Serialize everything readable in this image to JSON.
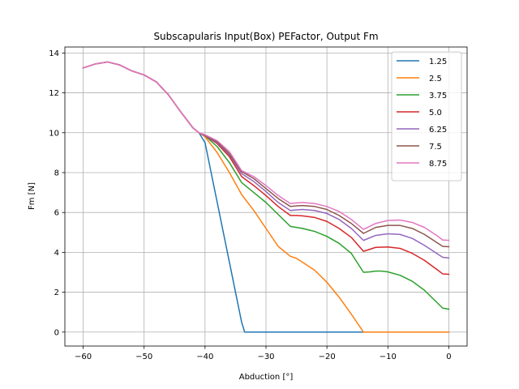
{
  "chart_data": {
    "type": "line",
    "title": "Subscapularis Input(Box) PEFactor, Output Fm",
    "xlabel": "Abduction [°]",
    "ylabel": "Fm [N]",
    "xlim": [
      -63,
      3
    ],
    "ylim": [
      -0.7,
      14.3
    ],
    "xticks": [
      -60,
      -50,
      -40,
      -30,
      -20,
      -10,
      0
    ],
    "xtick_labels": [
      "−60",
      "−50",
      "−40",
      "−30",
      "−20",
      "−10",
      "0"
    ],
    "yticks": [
      0,
      2,
      4,
      6,
      8,
      10,
      12,
      14
    ],
    "ytick_labels": [
      "0",
      "2",
      "4",
      "6",
      "8",
      "10",
      "12",
      "14"
    ],
    "grid": true,
    "legend_position": "top-right",
    "common": {
      "x": [
        -60,
        -58,
        -56,
        -54,
        -52,
        -50,
        -48,
        -46,
        -44,
        -42,
        -41
      ],
      "y": [
        13.25,
        13.45,
        13.55,
        13.4,
        13.1,
        12.9,
        12.55,
        11.9,
        11.05,
        10.25,
        10.0
      ]
    },
    "series": [
      {
        "name": "1.25",
        "color": "#1f77b4",
        "x": [
          -41,
          -40,
          -39,
          -38,
          -37,
          -36,
          -35,
          -34,
          -33.5,
          -33,
          -20,
          -10,
          0
        ],
        "y": [
          10.0,
          9.5,
          8.0,
          6.5,
          5.0,
          3.5,
          2.0,
          0.5,
          0.0,
          0.0,
          0.0,
          0.0,
          0.0
        ]
      },
      {
        "name": "2.5",
        "color": "#ff7f0e",
        "x": [
          -41,
          -40,
          -38,
          -36,
          -34,
          -32,
          -30,
          -28,
          -26,
          -25,
          -24,
          -22,
          -20,
          -18,
          -16,
          -14,
          -12,
          0
        ],
        "y": [
          10.0,
          9.8,
          9.0,
          8.0,
          6.9,
          6.1,
          5.2,
          4.3,
          3.8,
          3.7,
          3.5,
          3.1,
          2.5,
          1.75,
          0.9,
          0.0,
          0.0,
          0.0
        ]
      },
      {
        "name": "3.75",
        "color": "#2ca02c",
        "x": [
          -41,
          -40,
          -38,
          -36,
          -34,
          -32,
          -30,
          -28,
          -26,
          -25,
          -24,
          -22,
          -20,
          -18,
          -16,
          -14,
          -13,
          -12,
          -11,
          -10,
          -8,
          -6,
          -4,
          -2,
          -1,
          0
        ],
        "y": [
          10.0,
          9.85,
          9.3,
          8.5,
          7.5,
          7.0,
          6.5,
          5.9,
          5.3,
          5.25,
          5.2,
          5.05,
          4.8,
          4.45,
          3.95,
          3.0,
          3.02,
          3.06,
          3.06,
          3.02,
          2.85,
          2.55,
          2.1,
          1.5,
          1.2,
          1.15
        ]
      },
      {
        "name": "5.0",
        "color": "#d62728",
        "x": [
          -41,
          -40,
          -38,
          -36,
          -34,
          -32,
          -30,
          -28,
          -26,
          -25,
          -24,
          -22,
          -20,
          -18,
          -16,
          -14,
          -12,
          -10,
          -8,
          -6,
          -4,
          -2,
          -1,
          0
        ],
        "y": [
          10.0,
          9.85,
          9.45,
          8.8,
          7.8,
          7.35,
          6.85,
          6.3,
          5.85,
          5.85,
          5.83,
          5.75,
          5.55,
          5.2,
          4.75,
          4.05,
          4.25,
          4.27,
          4.2,
          3.95,
          3.6,
          3.15,
          2.92,
          2.9
        ]
      },
      {
        "name": "6.25",
        "color": "#9467bd",
        "x": [
          -41,
          -40,
          -38,
          -36,
          -34,
          -32,
          -30,
          -28,
          -26,
          -25,
          -24,
          -22,
          -20,
          -18,
          -16,
          -14,
          -12,
          -10,
          -8,
          -6,
          -4,
          -2,
          -1,
          0
        ],
        "y": [
          10.0,
          9.85,
          9.5,
          8.9,
          7.95,
          7.55,
          7.05,
          6.5,
          6.1,
          6.13,
          6.15,
          6.1,
          5.95,
          5.65,
          5.2,
          4.6,
          4.85,
          4.93,
          4.9,
          4.7,
          4.35,
          3.95,
          3.75,
          3.72
        ]
      },
      {
        "name": "7.5",
        "color": "#8c564b",
        "x": [
          -41,
          -40,
          -38,
          -36,
          -34,
          -32,
          -30,
          -28,
          -26,
          -25,
          -24,
          -22,
          -20,
          -18,
          -16,
          -14,
          -12,
          -10,
          -8,
          -6,
          -4,
          -2,
          -1,
          0
        ],
        "y": [
          10.0,
          9.87,
          9.55,
          8.95,
          8.05,
          7.7,
          7.2,
          6.7,
          6.3,
          6.33,
          6.35,
          6.3,
          6.15,
          5.85,
          5.45,
          4.95,
          5.25,
          5.35,
          5.35,
          5.2,
          4.9,
          4.5,
          4.3,
          4.28
        ]
      },
      {
        "name": "8.75",
        "color": "#e377c2",
        "x": [
          -41,
          -40,
          -38,
          -36,
          -34,
          -32,
          -30,
          -28,
          -26,
          -25,
          -24,
          -22,
          -20,
          -18,
          -16,
          -14,
          -12,
          -10,
          -8,
          -6,
          -4,
          -2,
          -1,
          0
        ],
        "y": [
          10.0,
          9.9,
          9.6,
          9.05,
          8.1,
          7.8,
          7.35,
          6.85,
          6.45,
          6.48,
          6.5,
          6.45,
          6.3,
          6.05,
          5.65,
          5.15,
          5.45,
          5.6,
          5.62,
          5.5,
          5.25,
          4.85,
          4.62,
          4.6
        ]
      }
    ]
  }
}
